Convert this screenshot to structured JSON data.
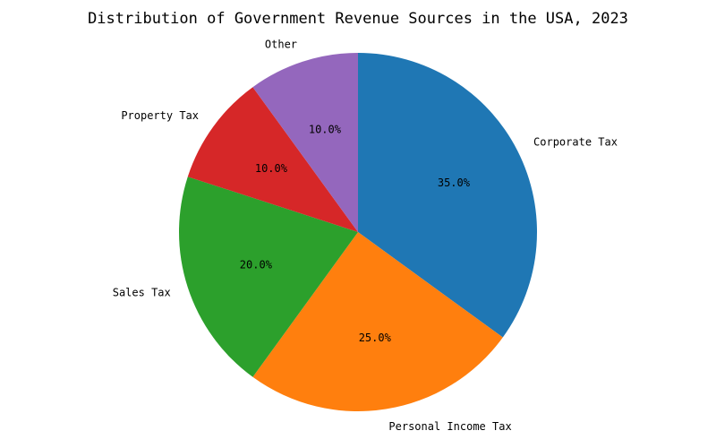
{
  "chart_data": {
    "type": "pie",
    "title": "Distribution of Government Revenue Sources in the USA, 2023",
    "start_angle_deg": 90,
    "direction": "clockwise",
    "slices": [
      {
        "label": "Corporate Tax",
        "value": 35.0,
        "pct_text": "35.0%",
        "color": "#1f77b4"
      },
      {
        "label": "Personal Income Tax",
        "value": 25.0,
        "pct_text": "25.0%",
        "color": "#ff7f0e"
      },
      {
        "label": "Sales Tax",
        "value": 20.0,
        "pct_text": "20.0%",
        "color": "#2ca02c"
      },
      {
        "label": "Property Tax",
        "value": 10.0,
        "pct_text": "10.0%",
        "color": "#d62728"
      },
      {
        "label": "Other",
        "value": 10.0,
        "pct_text": "10.0%",
        "color": "#9467bd"
      }
    ]
  }
}
